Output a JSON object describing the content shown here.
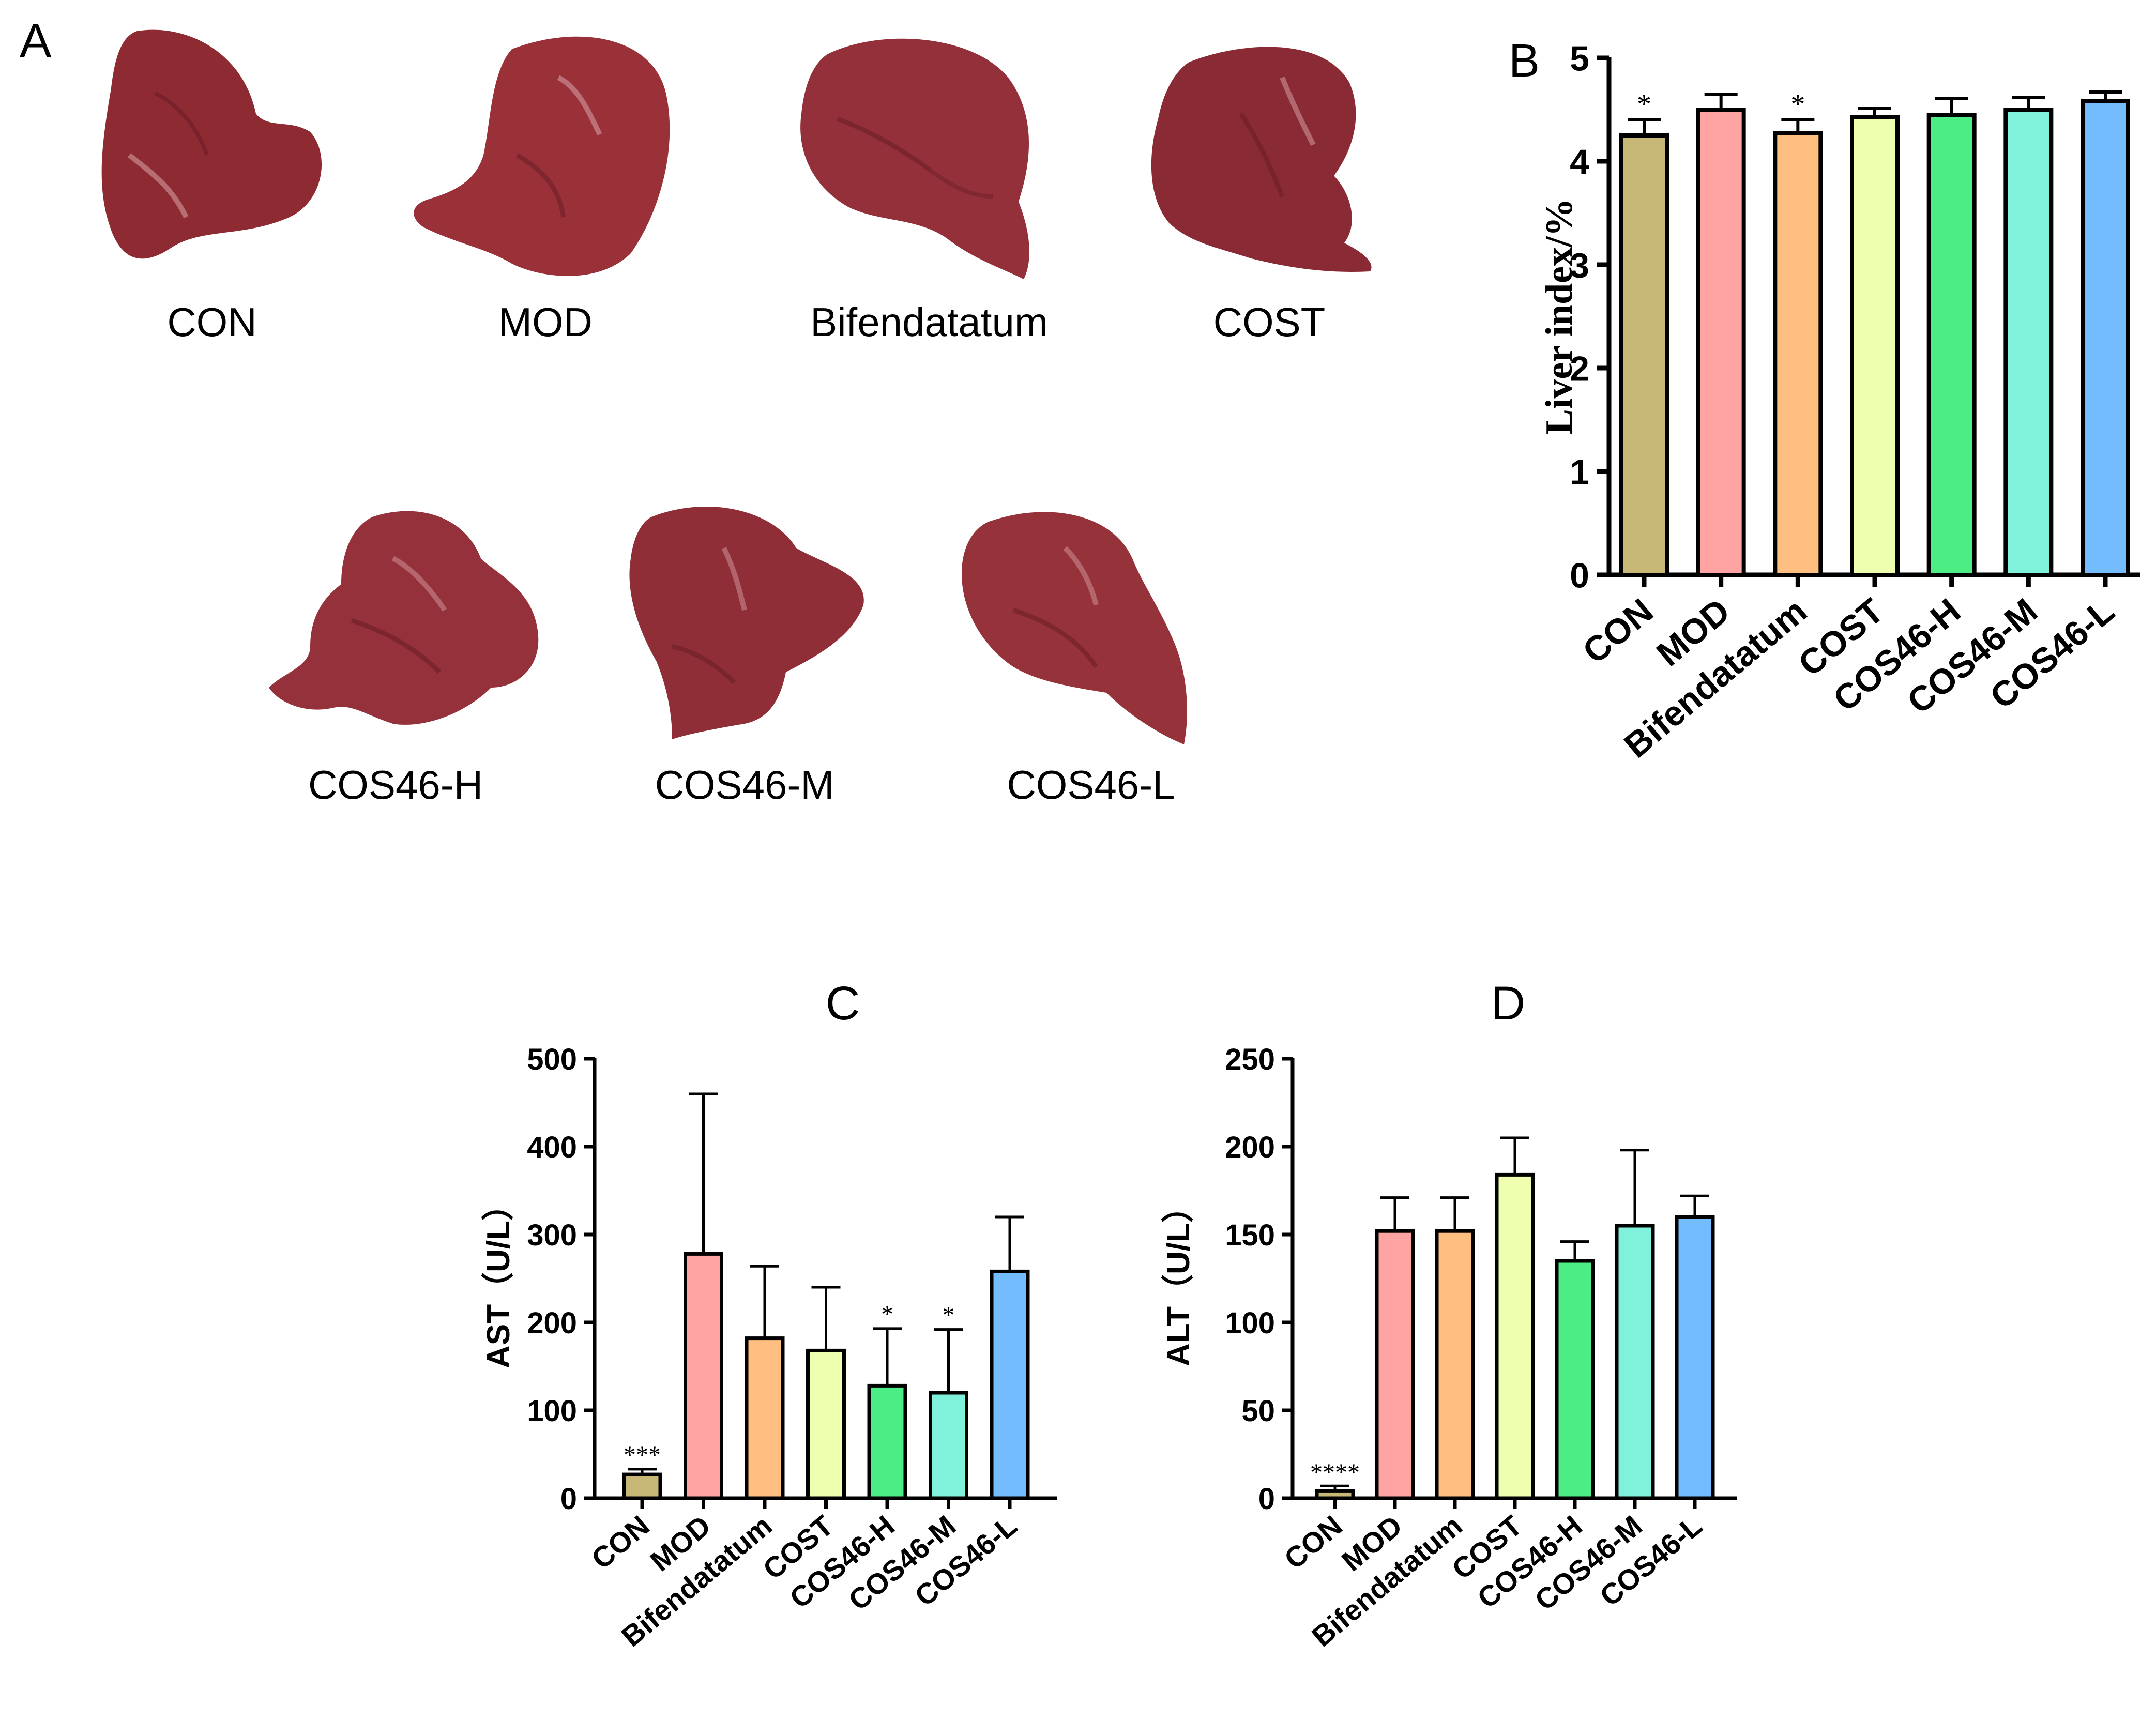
{
  "panel_a": {
    "letter": "A",
    "livers": [
      {
        "label": "CON",
        "color": "#8e2a32"
      },
      {
        "label": "MOD",
        "color": "#9a3138"
      },
      {
        "label": "Bifendatatum",
        "color": "#93303a"
      },
      {
        "label": "COST",
        "color": "#8a2a34"
      },
      {
        "label": "COS46-H",
        "color": "#94313a"
      },
      {
        "label": "COS46-M",
        "color": "#8f2e36"
      },
      {
        "label": "COS46-L",
        "color": "#963239"
      }
    ]
  },
  "chart_data": [
    {
      "panel": "B",
      "type": "bar",
      "title": "",
      "xlabel": "",
      "ylabel": "Liver index/%",
      "ylim": [
        0,
        5
      ],
      "yticks": [
        0,
        1,
        2,
        3,
        4,
        5
      ],
      "categories": [
        "CON",
        "MOD",
        "Bifendatatum",
        "COST",
        "COS46-H",
        "COS46-M",
        "COS46-L"
      ],
      "values": [
        4.25,
        4.5,
        4.27,
        4.43,
        4.45,
        4.5,
        4.58
      ],
      "errors": [
        0.15,
        0.15,
        0.13,
        0.08,
        0.16,
        0.12,
        0.09
      ],
      "significance": [
        "*",
        "",
        "*",
        "",
        "",
        "",
        ""
      ],
      "colors": [
        "#c8b878",
        "#ffa3a3",
        "#ffbf80",
        "#eeffb0",
        "#4ced85",
        "#80f2dc",
        "#73bcff"
      ]
    },
    {
      "panel": "C",
      "type": "bar",
      "title": "C",
      "xlabel": "",
      "ylabel": "AST（U/L）",
      "ylim": [
        0,
        500
      ],
      "yticks": [
        0,
        100,
        200,
        300,
        400,
        500
      ],
      "categories": [
        "CON",
        "MOD",
        "Bifendatatum",
        "COST",
        "COS46-H",
        "COS46-M",
        "COS46-L"
      ],
      "values": [
        27,
        278,
        182,
        168,
        128,
        120,
        258
      ],
      "errors": [
        6,
        182,
        82,
        72,
        65,
        72,
        62
      ],
      "significance": [
        "***",
        "",
        "",
        "",
        "*",
        "*",
        ""
      ],
      "colors": [
        "#c8b878",
        "#ffa3a3",
        "#ffbf80",
        "#eeffb0",
        "#4ced85",
        "#80f2dc",
        "#73bcff"
      ]
    },
    {
      "panel": "D",
      "type": "bar",
      "title": "D",
      "xlabel": "",
      "ylabel": "ALT（U/L）",
      "ylim": [
        0,
        250
      ],
      "yticks": [
        0,
        50,
        100,
        150,
        200,
        250
      ],
      "categories": [
        "CON",
        "MOD",
        "Bifendatatum",
        "COST",
        "COS46-H",
        "COS46-M",
        "COS46-L"
      ],
      "values": [
        4,
        152,
        152,
        184,
        135,
        155,
        160
      ],
      "errors": [
        3,
        19,
        19,
        21,
        11,
        43,
        12
      ],
      "significance": [
        "****",
        "",
        "",
        "",
        "",
        "",
        ""
      ],
      "colors": [
        "#c8b878",
        "#ffa3a3",
        "#ffbf80",
        "#eeffb0",
        "#4ced85",
        "#80f2dc",
        "#73bcff"
      ]
    }
  ]
}
